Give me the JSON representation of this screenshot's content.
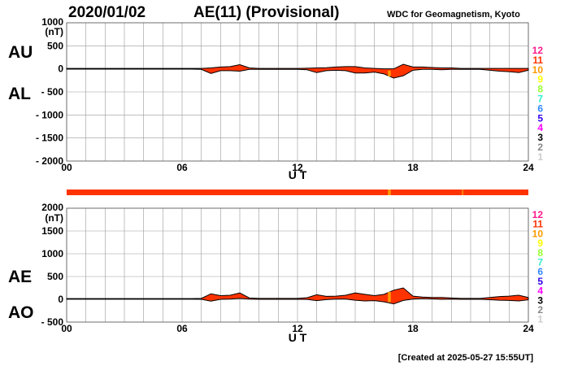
{
  "header": {
    "date": "2020/01/02",
    "title": "AE(11) (Provisional)",
    "source": "WDC for Geomagnetism, Kyoto"
  },
  "footer": {
    "created": "[Created at 2025-05-27 15:55UT]"
  },
  "colors": {
    "fill": "#ff3300",
    "fill_10": "#ff9900",
    "outline": "#000000",
    "grid": "#999999"
  },
  "legend": {
    "items": [
      {
        "label": "12",
        "color": "#ff1a8c"
      },
      {
        "label": "11",
        "color": "#ff3300"
      },
      {
        "label": "10",
        "color": "#ff9900"
      },
      {
        "label": "9",
        "color": "#ffff00"
      },
      {
        "label": "8",
        "color": "#99ff33"
      },
      {
        "label": "7",
        "color": "#33eecc"
      },
      {
        "label": "6",
        "color": "#3388ff"
      },
      {
        "label": "5",
        "color": "#3300ee"
      },
      {
        "label": "4",
        "color": "#ff00ff"
      },
      {
        "label": "3",
        "color": "#000000"
      },
      {
        "label": "2",
        "color": "#888888"
      },
      {
        "label": "1",
        "color": "#cccccc"
      }
    ]
  },
  "chart_data": [
    {
      "type": "area",
      "title": "AU / AL",
      "labels": {
        "upper": "AU",
        "lower": "AL"
      },
      "xlabel": "U T",
      "ylabel_unit": "(nT)",
      "xlim": [
        0,
        24
      ],
      "ylim": [
        -2000,
        1000
      ],
      "xticks": [
        "00",
        "06",
        "12",
        "18",
        "24"
      ],
      "yticks": [
        "1000",
        "500",
        "0",
        "- 500",
        "- 1000",
        "- 1500",
        "- 2000"
      ],
      "grid": true,
      "x": [
        0,
        0.5,
        1,
        1.5,
        2,
        2.5,
        3,
        3.5,
        4,
        4.5,
        5,
        5.5,
        6,
        6.5,
        7,
        7.5,
        8,
        8.5,
        9,
        9.5,
        10,
        10.5,
        11,
        11.5,
        12,
        12.5,
        13,
        13.5,
        14,
        14.5,
        15,
        15.5,
        16,
        16.5,
        17,
        17.5,
        18,
        18.5,
        19,
        19.5,
        20,
        20.5,
        21,
        21.5,
        22,
        22.5,
        23,
        23.5,
        24
      ],
      "series": [
        {
          "name": "AU",
          "values": [
            10,
            10,
            10,
            10,
            10,
            10,
            10,
            10,
            10,
            10,
            10,
            10,
            10,
            10,
            10,
            20,
            40,
            50,
            90,
            20,
            10,
            10,
            10,
            10,
            10,
            15,
            20,
            25,
            40,
            50,
            50,
            20,
            10,
            0,
            0,
            100,
            40,
            40,
            30,
            20,
            20,
            10,
            10,
            10,
            10,
            10,
            10,
            10,
            10
          ]
        },
        {
          "name": "AL",
          "values": [
            -5,
            -5,
            -5,
            -5,
            -5,
            -5,
            -5,
            -5,
            -5,
            -5,
            -5,
            -5,
            -5,
            -5,
            -10,
            -100,
            -40,
            -40,
            -50,
            -10,
            -10,
            -10,
            -10,
            -10,
            -10,
            -20,
            -80,
            -40,
            -30,
            -40,
            -90,
            -90,
            -70,
            -110,
            -200,
            -150,
            -30,
            -10,
            -10,
            -20,
            -10,
            -10,
            -10,
            -10,
            -30,
            -50,
            -60,
            -80,
            -30
          ]
        }
      ]
    },
    {
      "type": "area",
      "title": "AE / AO",
      "labels": {
        "upper": "AE",
        "lower": "AO"
      },
      "xlabel": "U T",
      "ylabel_unit": "(nT)",
      "xlim": [
        0,
        24
      ],
      "ylim": [
        -500,
        2000
      ],
      "xticks": [
        "00",
        "06",
        "12",
        "18",
        "24"
      ],
      "yticks": [
        "2000",
        "1500",
        "1000",
        "500",
        "0",
        "- 500"
      ],
      "grid": true,
      "station_count": {
        "default": 11,
        "segments": [
          {
            "start": 16.7,
            "end": 16.85,
            "count": 10
          },
          {
            "start": 20.55,
            "end": 20.6,
            "count": 10
          }
        ]
      }
    }
  ]
}
